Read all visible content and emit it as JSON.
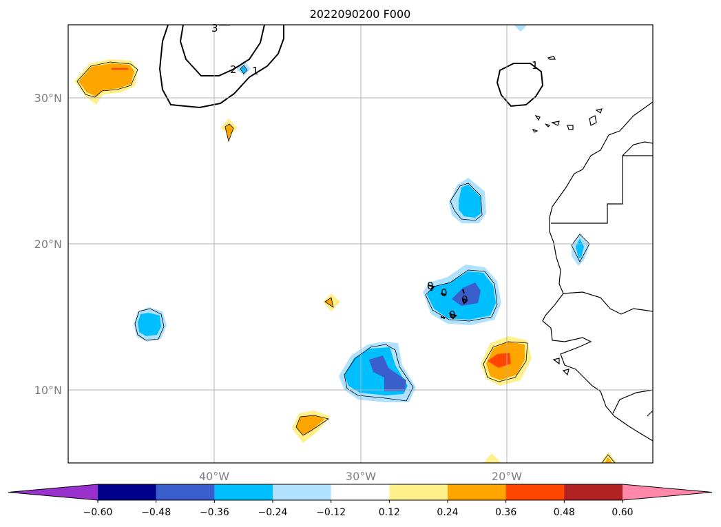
{
  "title": "2022090200 F000",
  "map": {
    "lon_range": [
      -50,
      -10
    ],
    "lat_range": [
      5,
      35
    ],
    "lat_labels": [
      "30°N",
      "20°N",
      "10°N"
    ],
    "lon_labels": [
      "40°W",
      "30°W",
      "20°W"
    ],
    "grid": true,
    "contour_labels": [
      "3",
      "2",
      "1",
      "1",
      "0",
      "0",
      "0",
      "0"
    ]
  },
  "colorbar": {
    "ticks": [
      "−0.60",
      "−0.48",
      "−0.36",
      "−0.24",
      "−0.12",
      "0.12",
      "0.24",
      "0.36",
      "0.48",
      "0.60"
    ],
    "colors": [
      "#9932cc",
      "#00008b",
      "#3a5fcd",
      "#00bfff",
      "#b0e2ff",
      "#ffffff",
      "#fff08c",
      "#ffa500",
      "#ff4500",
      "#b22222",
      "#ff88aa"
    ],
    "extend": "both"
  }
}
